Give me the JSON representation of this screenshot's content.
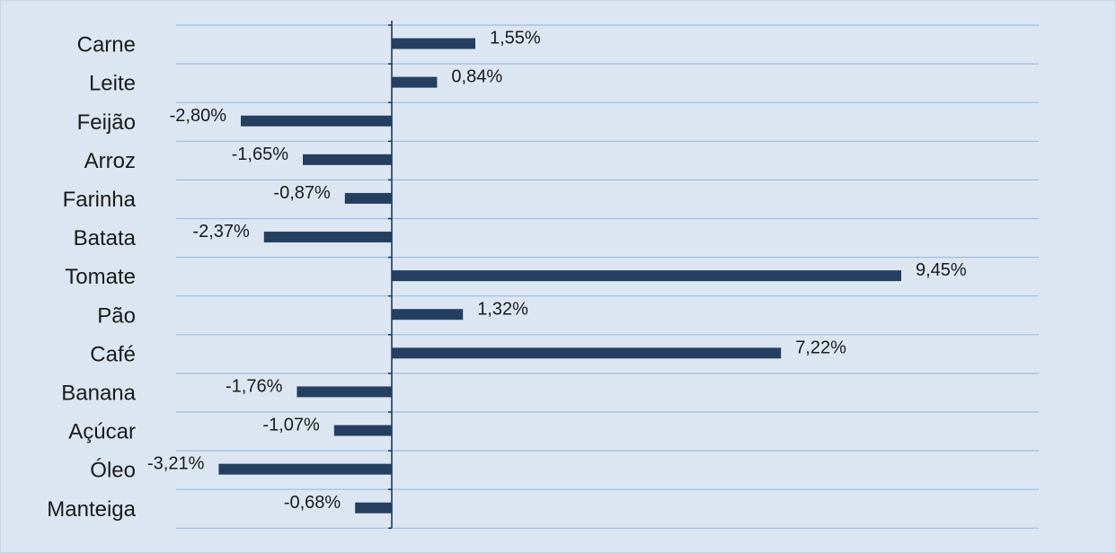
{
  "chart_data": {
    "type": "bar",
    "orientation": "horizontal",
    "categories": [
      "Carne",
      "Leite",
      "Feijão",
      "Arroz",
      "Farinha",
      "Batata",
      "Tomate",
      "Pão",
      "Café",
      "Banana",
      "Açúcar",
      "Óleo",
      "Manteiga"
    ],
    "values": [
      1.55,
      0.84,
      -2.8,
      -1.65,
      -0.87,
      -2.37,
      9.45,
      1.32,
      7.22,
      -1.76,
      -1.07,
      -3.21,
      -0.68
    ],
    "value_labels": [
      "1,55%",
      "0,84%",
      "-2,80%",
      "-1,65%",
      "-0,87%",
      "-2,37%",
      "9,45%",
      "1,32%",
      "7,22%",
      "-1,76%",
      "-1,07%",
      "-3,21%",
      "-0,68%"
    ],
    "title": "",
    "xlabel": "",
    "ylabel": "",
    "xlim": [
      -4.0,
      12.0
    ],
    "grid": true,
    "legend": "none",
    "colors": {
      "bar": "#243f60",
      "grid": "#9fbbe0",
      "background": "#dce6f2",
      "axis": "#1f3a5f"
    }
  }
}
